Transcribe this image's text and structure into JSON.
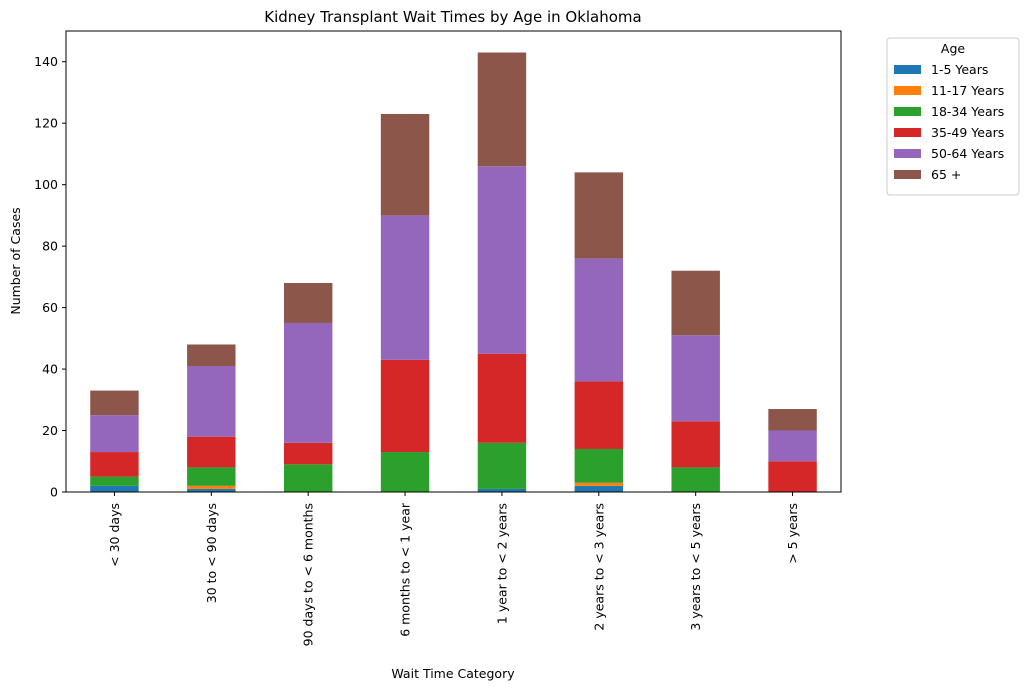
{
  "chart_data": {
    "type": "bar",
    "stacked": true,
    "title": "Kidney Transplant Wait Times by Age in Oklahoma",
    "xlabel": "Wait Time Category",
    "ylabel": "Number of Cases",
    "ylim": [
      0,
      150
    ],
    "yticks": [
      0,
      20,
      40,
      60,
      80,
      100,
      120,
      140
    ],
    "grid": false,
    "legend_title": "Age",
    "legend_position": "outside-top-right",
    "categories": [
      "< 30 days",
      "30 to < 90 days",
      "90 days to < 6 months",
      "6 months to < 1 year",
      "1 year to < 2 years",
      "2 years to < 3 years",
      "3 years to < 5 years",
      "> 5 years"
    ],
    "series": [
      {
        "name": "1-5 Years",
        "color": "#1f77b4",
        "values": [
          2,
          1,
          0,
          0,
          1,
          2,
          0,
          0
        ]
      },
      {
        "name": "11-17 Years",
        "color": "#ff7f0e",
        "values": [
          0,
          1,
          0,
          0,
          0,
          1,
          0,
          0
        ]
      },
      {
        "name": "18-34 Years",
        "color": "#2ca02c",
        "values": [
          3,
          6,
          9,
          13,
          15,
          11,
          8,
          0
        ]
      },
      {
        "name": "35-49 Years",
        "color": "#d62728",
        "values": [
          8,
          10,
          7,
          30,
          29,
          22,
          15,
          10
        ]
      },
      {
        "name": "50-64 Years",
        "color": "#9467bd",
        "values": [
          12,
          23,
          39,
          47,
          61,
          40,
          28,
          10
        ]
      },
      {
        "name": "65 +",
        "color": "#8c564b",
        "values": [
          8,
          7,
          13,
          33,
          37,
          28,
          21,
          7
        ]
      }
    ]
  }
}
